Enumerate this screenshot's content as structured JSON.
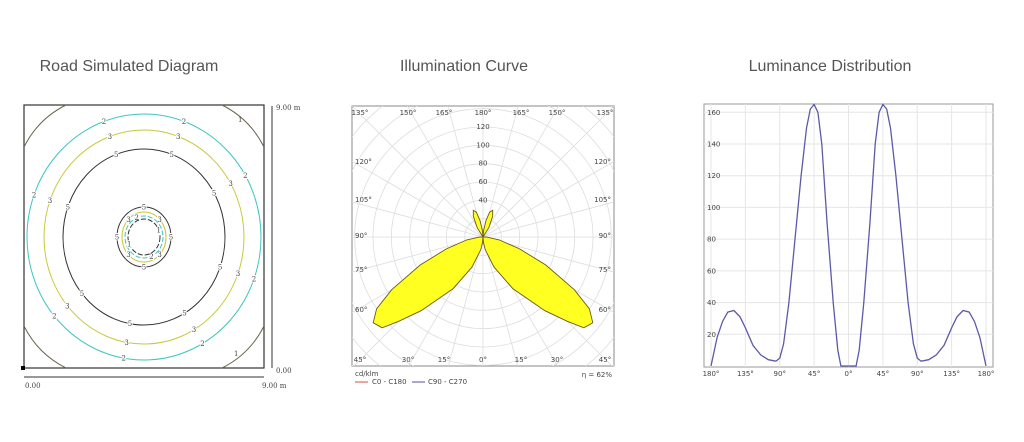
{
  "titles": {
    "road": "Road Simulated Diagram",
    "illumination": "Illumination Curve",
    "luminance": "Luminance Distribution"
  },
  "colors": {
    "cyan": "#3cc6c0",
    "yellow": "#c8c83a",
    "black": "#333333",
    "corner": "#6b6550",
    "lobe_fill": "#ffff22",
    "lobe_stroke": "#6b5a1a",
    "curve": "#5a5aa8",
    "c0": "#d0503a",
    "c90": "#5050a0"
  },
  "road_diagram": {
    "scale_top": "9.00 m",
    "scale_right_bottom": "0.00",
    "scale_left": "0.00",
    "scale_bottom_right": "9.00 m",
    "contours": [
      {
        "level": "1",
        "color": "corner"
      },
      {
        "level": "2",
        "color": "cyan"
      },
      {
        "level": "3",
        "color": "yellow"
      },
      {
        "level": "5",
        "color": "black"
      },
      {
        "level": "5",
        "color": "black"
      },
      {
        "level": "3",
        "color": "yellow"
      },
      {
        "level": "2",
        "color": "cyan"
      },
      {
        "level": "1",
        "color": "black"
      }
    ]
  },
  "chart_data": [
    {
      "type": "polar",
      "title": "Illumination Curve",
      "unit": "cd/klm",
      "radial_ticks": [
        20,
        40,
        60,
        80,
        100,
        120
      ],
      "radial_tick_labels": [
        "40",
        "60",
        "80",
        "100",
        "120"
      ],
      "angle_labels_top": [
        "135°",
        "150°",
        "165°",
        "180°",
        "165°",
        "150°",
        "135°"
      ],
      "angle_labels_side": [
        "120°",
        "105°",
        "90°",
        "75°",
        "60°"
      ],
      "angle_labels_bottom": [
        "45°",
        "30°",
        "15°",
        "0°",
        "15°",
        "30°",
        "45°"
      ],
      "legend": [
        "C0 - C180",
        "C90 - C270"
      ],
      "efficiency": "η = 62%",
      "series": {
        "name": "C0 - C180",
        "gamma": [
          0,
          5,
          10,
          20,
          30,
          40,
          45,
          48,
          52,
          56,
          60,
          66,
          72,
          80,
          88,
          90,
          140,
          148,
          155,
          160,
          165,
          170,
          175,
          180
        ],
        "intensity": [
          0,
          6,
          14,
          35,
          65,
          105,
          130,
          148,
          152,
          140,
          115,
          75,
          42,
          18,
          4,
          0,
          0,
          12,
          25,
          31,
          28,
          18,
          7,
          0
        ]
      }
    },
    {
      "type": "line",
      "title": "Luminance Distribution",
      "xlim": [
        -180,
        180
      ],
      "ylim": [
        0,
        165
      ],
      "x_tick_labels": [
        "180°",
        "135°",
        "90°",
        "45°",
        "0°",
        "45°",
        "90°",
        "135°",
        "180°"
      ],
      "y_ticks": [
        20,
        40,
        60,
        80,
        100,
        120,
        140,
        160
      ],
      "grid": true,
      "x": [
        -180,
        -172,
        -165,
        -158,
        -150,
        -142,
        -135,
        -125,
        -115,
        -105,
        -95,
        -90,
        -85,
        -78,
        -70,
        -62,
        -55,
        -50,
        -45,
        -40,
        -35,
        -28,
        -20,
        -14,
        -10,
        10,
        14,
        20,
        28,
        35,
        40,
        45,
        50,
        55,
        62,
        70,
        78,
        85,
        90,
        95,
        105,
        115,
        125,
        135,
        142,
        150,
        158,
        165,
        172,
        180
      ],
      "y": [
        0,
        18,
        28,
        34,
        35,
        31,
        24,
        13,
        7,
        4,
        3,
        5,
        14,
        40,
        80,
        120,
        150,
        162,
        165,
        160,
        140,
        90,
        40,
        10,
        0,
        0,
        10,
        40,
        90,
        140,
        160,
        165,
        162,
        150,
        120,
        80,
        40,
        14,
        5,
        3,
        4,
        7,
        13,
        24,
        31,
        35,
        34,
        28,
        18,
        0
      ]
    }
  ]
}
